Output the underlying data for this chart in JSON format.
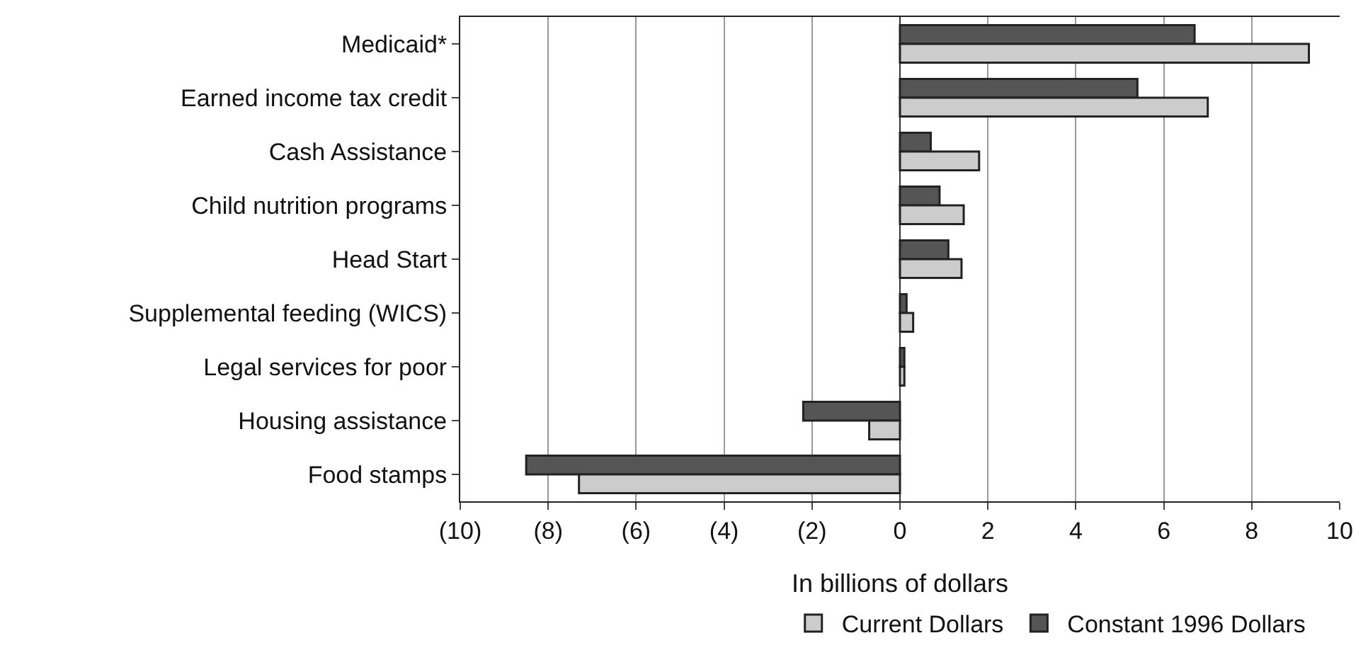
{
  "chart_data": {
    "type": "bar",
    "orientation": "horizontal",
    "xlabel": "In billions of dollars",
    "categories": [
      "Medicaid*",
      "Earned income tax credit",
      "Cash Assistance",
      "Child nutrition programs",
      "Head Start",
      "Supplemental feeding (WICS)",
      "Legal services for poor",
      "Housing assistance",
      "Food stamps"
    ],
    "series": [
      {
        "name": "Current Dollars",
        "color": "#cccccc",
        "values": [
          9.3,
          7.0,
          1.8,
          1.45,
          1.4,
          0.3,
          0.1,
          -0.7,
          -7.3
        ]
      },
      {
        "name": "Constant 1996 Dollars",
        "color": "#555555",
        "values": [
          6.7,
          5.4,
          0.7,
          0.9,
          1.1,
          0.15,
          0.1,
          -2.2,
          -8.5
        ]
      }
    ],
    "xlim": [
      -10,
      10
    ],
    "xticks": [
      {
        "value": -10,
        "label": "(10)"
      },
      {
        "value": -8,
        "label": "(8)"
      },
      {
        "value": -6,
        "label": "(6)"
      },
      {
        "value": -4,
        "label": "(4)"
      },
      {
        "value": -2,
        "label": "(2)"
      },
      0,
      2,
      4,
      6,
      8,
      10
    ],
    "grid": "x",
    "legend": "bottom"
  }
}
